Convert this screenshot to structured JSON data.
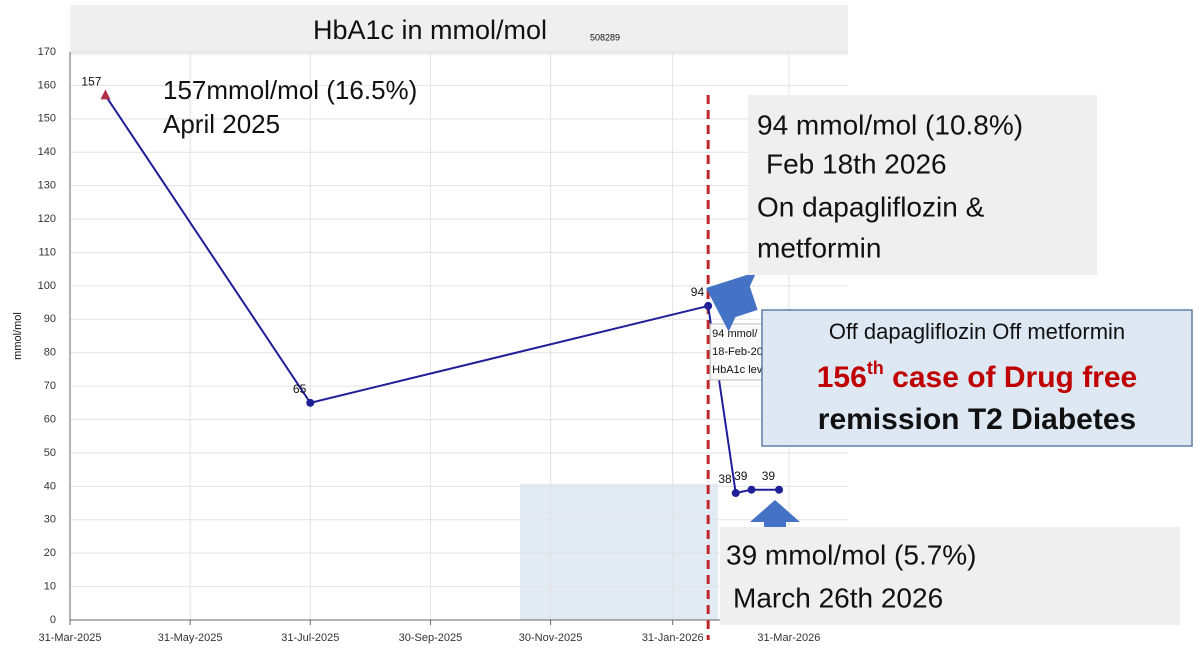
{
  "chart_data": {
    "type": "line",
    "title": "HbA1c in mmol/mol",
    "subtitle": "508289",
    "y_label": "mmol/mol",
    "x": [
      "2025-04-18",
      "2025-07-31",
      "2026-02-18",
      "2026-03-04",
      "2026-03-12",
      "2026-03-26"
    ],
    "values": [
      157,
      65,
      94,
      38,
      39,
      39
    ],
    "color": "#1f1f99",
    "xlim": [
      "2025-03-31",
      "2026-04-30"
    ],
    "xticks": [
      {
        "value": "2025-03-31",
        "label": "31-Mar-2025"
      },
      {
        "value": "2025-05-31",
        "label": "31-May-2025"
      },
      {
        "value": "2025-07-31",
        "label": "31-Jul-2025"
      },
      {
        "value": "2025-09-30",
        "label": "30-Sep-2025"
      },
      {
        "value": "2025-11-30",
        "label": "30-Nov-2025"
      },
      {
        "value": "2026-01-31",
        "label": "31-Jan-2026"
      },
      {
        "value": "2026-03-31",
        "label": "31-Mar-2026"
      }
    ],
    "ylim": [
      0,
      170
    ],
    "yticks": [
      0,
      10,
      20,
      30,
      40,
      50,
      60,
      70,
      80,
      90,
      100,
      110,
      120,
      130,
      140,
      150,
      160,
      170
    ],
    "grid": true,
    "tooltip": [
      "94 mmol/",
      "18-Feb-20",
      "HbA1c lev"
    ],
    "annotations": {
      "start": [
        "157mmol/mol (16.5%)",
        "April 2025"
      ],
      "peak": [
        "94 mmol/mol (10.8%)",
        "Feb 18th 2026",
        "On dapagliflozin &",
        "metformin"
      ],
      "remission": {
        "line1": "Off dapagliflozin Off metformin",
        "number": "156",
        "sup": "th",
        "rest": " case of Drug free",
        "line3": "remission T2 Diabetes"
      },
      "latest": [
        "39 mmol/mol (5.7%)",
        "March 26th 2026"
      ]
    }
  }
}
